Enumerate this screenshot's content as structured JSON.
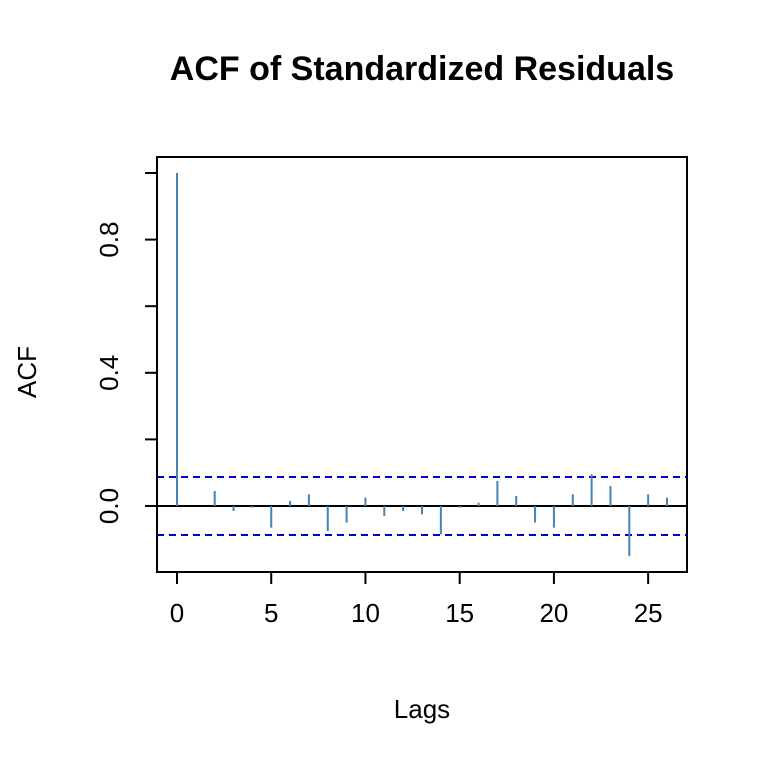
{
  "chart_data": {
    "type": "bar",
    "title": "ACF of Standardized Residuals",
    "xlabel": "Lags",
    "ylabel": "ACF",
    "xlim": [
      -1,
      27
    ],
    "ylim": [
      -0.2,
      1.0
    ],
    "x_ticks": [
      0,
      5,
      10,
      15,
      20,
      25
    ],
    "x_tick_labels": [
      "0",
      "5",
      "10",
      "15",
      "20",
      "25"
    ],
    "y_ticks": [
      0.0,
      0.2,
      0.4,
      0.6,
      0.8,
      1.0
    ],
    "y_tick_labels": [
      "0.0",
      "",
      "0.4",
      "",
      "0.8",
      ""
    ],
    "confidence_band": 0.087,
    "lags": [
      0,
      1,
      2,
      3,
      4,
      5,
      6,
      7,
      8,
      9,
      10,
      11,
      12,
      13,
      14,
      15,
      16,
      17,
      18,
      19,
      20,
      21,
      22,
      23,
      24,
      25,
      26
    ],
    "values": [
      1.0,
      0.0,
      0.045,
      -0.015,
      -0.005,
      -0.065,
      0.015,
      0.035,
      -0.075,
      -0.05,
      0.025,
      -0.03,
      -0.015,
      -0.025,
      -0.085,
      -0.005,
      0.01,
      0.075,
      0.03,
      -0.05,
      -0.065,
      0.035,
      0.095,
      0.06,
      -0.15,
      0.035,
      0.025
    ],
    "grid": false,
    "colors": {
      "bars": "#4682b4",
      "confidence": "#0000cd",
      "axis": "#000000"
    }
  }
}
